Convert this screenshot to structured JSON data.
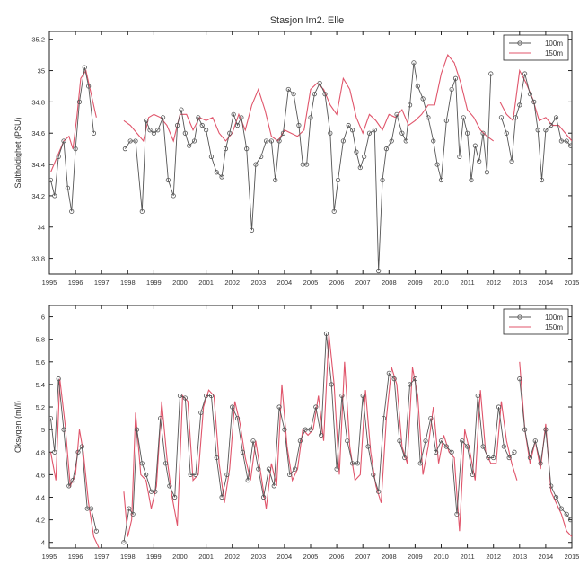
{
  "figure_title": "Stasjon Im2. Elle",
  "colors": {
    "series_100m": "#555555",
    "series_150m": "#e0556b",
    "axis": "#222222"
  },
  "chart_data": [
    {
      "type": "line",
      "title": "Stasjon Im2. Elle",
      "xlabel": "",
      "ylabel": "Saltholdighet (PSU)",
      "xlim": [
        1995,
        2015
      ],
      "ylim": [
        33.7,
        35.25
      ],
      "x_ticks": [
        "1995",
        "1996",
        "1997",
        "1998",
        "1999",
        "2000",
        "2001",
        "2002",
        "2003",
        "2004",
        "2005",
        "2006",
        "2007",
        "2008",
        "2009",
        "2010",
        "2011",
        "2012",
        "2013",
        "2014",
        "2015"
      ],
      "y_ticks": [
        "33.8",
        "34",
        "34.2",
        "34.4",
        "34.6",
        "34.8",
        "35",
        "35.2"
      ],
      "legend_position": "top-right",
      "series": [
        {
          "name": "100m",
          "marker": "circle",
          "x": [
            1995.05,
            1995.2,
            1995.35,
            1995.55,
            1995.7,
            1995.85,
            1996.0,
            1996.15,
            1996.35,
            1996.5,
            1996.7,
            null,
            1997.9,
            1998.1,
            1998.3,
            1998.55,
            1998.7,
            1998.85,
            1999.0,
            1999.15,
            1999.35,
            1999.55,
            1999.75,
            1999.9,
            2000.05,
            2000.2,
            2000.35,
            2000.55,
            2000.7,
            2000.85,
            2001.0,
            2001.2,
            2001.4,
            2001.6,
            2001.75,
            2001.9,
            2002.05,
            2002.2,
            2002.35,
            2002.55,
            2002.75,
            2002.9,
            2003.1,
            2003.3,
            2003.5,
            2003.65,
            2003.8,
            2003.95,
            2004.15,
            2004.35,
            2004.55,
            2004.7,
            2004.85,
            2005.0,
            2005.15,
            2005.35,
            2005.55,
            2005.75,
            2005.9,
            2006.05,
            2006.25,
            2006.45,
            2006.6,
            2006.75,
            2006.9,
            2007.05,
            2007.25,
            2007.45,
            2007.6,
            2007.75,
            2007.9,
            2008.1,
            2008.3,
            2008.5,
            2008.65,
            2008.8,
            2008.95,
            2009.1,
            2009.3,
            2009.5,
            2009.7,
            2009.85,
            2010.0,
            2010.2,
            2010.4,
            2010.55,
            2010.7,
            2010.85,
            2011.0,
            2011.15,
            2011.3,
            2011.45,
            2011.6,
            2011.75,
            2011.9,
            null,
            2012.3,
            2012.5,
            2012.7,
            2012.85,
            2013.0,
            2013.2,
            2013.4,
            2013.55,
            2013.7,
            2013.85,
            2014.0,
            2014.2,
            2014.4,
            2014.6,
            2014.8,
            2014.95
          ],
          "y": [
            34.3,
            34.2,
            34.45,
            34.55,
            34.25,
            34.1,
            34.5,
            34.8,
            35.02,
            34.9,
            34.6,
            null,
            34.5,
            34.55,
            34.55,
            34.1,
            34.68,
            34.62,
            34.6,
            34.62,
            34.7,
            34.3,
            34.2,
            34.65,
            34.75,
            34.6,
            34.52,
            34.55,
            34.7,
            34.65,
            34.62,
            34.45,
            34.35,
            34.32,
            34.5,
            34.6,
            34.72,
            34.65,
            34.7,
            34.5,
            33.98,
            34.4,
            34.45,
            34.55,
            34.55,
            34.3,
            34.55,
            34.6,
            34.88,
            34.85,
            34.65,
            34.4,
            34.4,
            34.7,
            34.85,
            34.92,
            34.85,
            34.6,
            34.1,
            34.3,
            34.55,
            34.65,
            34.62,
            34.48,
            34.38,
            34.45,
            34.6,
            34.62,
            33.72,
            34.3,
            34.5,
            34.55,
            34.72,
            34.6,
            34.55,
            34.78,
            35.05,
            34.9,
            34.82,
            34.7,
            34.55,
            34.4,
            34.3,
            34.68,
            34.88,
            34.95,
            34.45,
            34.7,
            34.6,
            34.3,
            34.52,
            34.42,
            34.6,
            34.35,
            34.98,
            null,
            34.7,
            34.6,
            34.42,
            34.7,
            34.78,
            34.98,
            34.85,
            34.8,
            34.62,
            34.3,
            34.62,
            34.65,
            34.7,
            34.55,
            34.55,
            34.52
          ],
          "values_note": ""
        },
        {
          "name": "150m",
          "marker": "none",
          "x": [
            1995.05,
            1995.3,
            1995.55,
            1995.75,
            1995.9,
            1996.05,
            1996.2,
            1996.4,
            1996.6,
            1996.8,
            null,
            1997.85,
            1998.1,
            1998.35,
            1998.6,
            1998.8,
            1999.0,
            1999.25,
            1999.5,
            1999.75,
            2000.0,
            2000.25,
            2000.5,
            2000.75,
            2001.0,
            2001.25,
            2001.5,
            2001.75,
            2002.0,
            2002.25,
            2002.5,
            2002.75,
            2003.0,
            2003.25,
            2003.5,
            2003.75,
            2004.0,
            2004.25,
            2004.5,
            2004.75,
            2005.0,
            2005.25,
            2005.5,
            2005.75,
            2006.0,
            2006.25,
            2006.5,
            2006.75,
            2007.0,
            2007.25,
            2007.5,
            2007.75,
            2008.0,
            2008.25,
            2008.5,
            2008.75,
            2009.0,
            2009.25,
            2009.5,
            2009.75,
            2010.0,
            2010.25,
            2010.5,
            2010.75,
            2011.0,
            2011.25,
            2011.5,
            2011.75,
            2012.0,
            null,
            2012.25,
            2012.5,
            2012.75,
            2013.0,
            2013.25,
            2013.5,
            2013.75,
            2014.0,
            2014.25,
            2014.5,
            2014.75,
            2015.0
          ],
          "y": [
            34.35,
            34.45,
            34.55,
            34.58,
            34.5,
            34.7,
            34.95,
            35.0,
            34.85,
            34.7,
            null,
            34.68,
            34.65,
            34.6,
            34.55,
            34.7,
            34.72,
            34.7,
            34.65,
            34.55,
            34.72,
            34.72,
            34.62,
            34.7,
            34.68,
            34.7,
            34.6,
            34.55,
            34.6,
            34.72,
            34.62,
            34.78,
            34.88,
            34.75,
            34.58,
            34.55,
            34.62,
            34.6,
            34.58,
            34.62,
            34.88,
            34.92,
            34.88,
            34.78,
            34.72,
            34.95,
            34.88,
            34.7,
            34.6,
            34.72,
            34.68,
            34.62,
            34.72,
            34.7,
            34.75,
            34.65,
            34.68,
            34.72,
            34.78,
            34.78,
            34.98,
            35.1,
            35.05,
            34.92,
            34.75,
            34.7,
            34.62,
            34.58,
            34.55,
            null,
            34.8,
            34.72,
            34.68,
            35.0,
            34.92,
            34.82,
            34.68,
            34.7,
            34.65,
            34.65,
            34.6,
            34.55
          ],
          "values_note": ""
        }
      ]
    },
    {
      "type": "line",
      "title": "",
      "xlabel": "",
      "ylabel": "Oksygen (ml/l)",
      "xlim": [
        1995,
        2015
      ],
      "ylim": [
        3.95,
        6.1
      ],
      "x_ticks": [
        "1995",
        "1996",
        "1997",
        "1998",
        "1999",
        "2000",
        "2001",
        "2002",
        "2003",
        "2004",
        "2005",
        "2006",
        "2007",
        "2008",
        "2009",
        "2010",
        "2011",
        "2012",
        "2013",
        "2014",
        "2015"
      ],
      "y_ticks": [
        "4",
        "4.2",
        "4.4",
        "4.6",
        "4.8",
        "5",
        "5.2",
        "5.4",
        "5.6",
        "5.8",
        "6"
      ],
      "legend_position": "top-right",
      "series": [
        {
          "name": "100m",
          "marker": "circle",
          "x": [
            1995.05,
            1995.2,
            1995.35,
            1995.55,
            1995.75,
            1995.9,
            1996.1,
            1996.25,
            1996.45,
            1996.6,
            1996.8,
            null,
            1997.85,
            1998.05,
            1998.2,
            1998.35,
            1998.55,
            1998.7,
            1998.9,
            1999.05,
            1999.25,
            1999.45,
            1999.6,
            1999.8,
            2000.0,
            2000.2,
            2000.4,
            2000.6,
            2000.8,
            2001.0,
            2001.2,
            2001.4,
            2001.6,
            2001.8,
            2002.0,
            2002.2,
            2002.4,
            2002.6,
            2002.8,
            2003.0,
            2003.2,
            2003.4,
            2003.6,
            2003.8,
            2004.0,
            2004.2,
            2004.4,
            2004.6,
            2004.8,
            2005.0,
            2005.2,
            2005.4,
            2005.6,
            2005.8,
            2006.0,
            2006.2,
            2006.4,
            2006.6,
            2006.8,
            2007.0,
            2007.2,
            2007.4,
            2007.6,
            2007.8,
            2008.0,
            2008.2,
            2008.4,
            2008.6,
            2008.8,
            2009.0,
            2009.2,
            2009.4,
            2009.6,
            2009.8,
            2010.0,
            2010.2,
            2010.4,
            2010.6,
            2010.8,
            2011.0,
            2011.2,
            2011.4,
            2011.6,
            2011.8,
            2012.0,
            2012.2,
            2012.4,
            2012.6,
            2012.8,
            null,
            2013.0,
            2013.2,
            2013.4,
            2013.6,
            2013.8,
            2014.0,
            2014.2,
            2014.4,
            2014.6,
            2014.8,
            2014.95
          ],
          "y": [
            5.1,
            4.8,
            5.45,
            5.0,
            4.5,
            4.55,
            4.8,
            4.85,
            4.3,
            4.3,
            4.1,
            null,
            4.0,
            4.3,
            4.25,
            5.0,
            4.7,
            4.6,
            4.45,
            4.45,
            5.1,
            4.7,
            4.5,
            4.4,
            5.3,
            5.28,
            4.6,
            4.6,
            5.15,
            5.3,
            5.3,
            4.75,
            4.4,
            4.6,
            5.2,
            5.1,
            4.8,
            4.55,
            4.9,
            4.65,
            4.4,
            4.65,
            4.5,
            5.2,
            5.0,
            4.6,
            4.65,
            4.9,
            5.0,
            5.0,
            5.2,
            4.95,
            5.85,
            5.4,
            4.65,
            5.3,
            4.9,
            4.7,
            4.7,
            5.3,
            4.85,
            4.6,
            4.45,
            5.1,
            5.5,
            5.45,
            4.9,
            4.75,
            5.4,
            5.45,
            4.7,
            4.9,
            5.1,
            4.8,
            4.9,
            4.85,
            4.8,
            4.25,
            4.9,
            4.85,
            4.6,
            5.3,
            4.85,
            4.75,
            4.75,
            5.2,
            4.85,
            4.75,
            4.8,
            null,
            5.45,
            5.0,
            4.75,
            4.9,
            4.7,
            5.0,
            4.5,
            4.4,
            4.3,
            4.25,
            4.2
          ],
          "values_note": ""
        },
        {
          "name": "150m",
          "marker": "none",
          "x": [
            1995.05,
            1995.25,
            1995.4,
            1995.6,
            1995.8,
            1996.0,
            1996.15,
            1996.3,
            1996.5,
            1996.7,
            1996.9,
            null,
            1997.85,
            1998.0,
            1998.15,
            1998.3,
            1998.5,
            1998.7,
            1998.9,
            1999.1,
            1999.3,
            1999.5,
            1999.7,
            1999.9,
            2000.1,
            2000.3,
            2000.5,
            2000.7,
            2000.9,
            2001.1,
            2001.3,
            2001.5,
            2001.7,
            2001.9,
            2002.1,
            2002.3,
            2002.5,
            2002.7,
            2002.9,
            2003.1,
            2003.3,
            2003.5,
            2003.7,
            2003.9,
            2004.1,
            2004.3,
            2004.5,
            2004.7,
            2004.9,
            2005.1,
            2005.3,
            2005.5,
            2005.7,
            2005.9,
            2006.1,
            2006.3,
            2006.5,
            2006.7,
            2006.9,
            2007.1,
            2007.3,
            2007.5,
            2007.7,
            2007.9,
            2008.1,
            2008.3,
            2008.5,
            2008.7,
            2008.9,
            2009.1,
            2009.3,
            2009.5,
            2009.7,
            2009.9,
            2010.1,
            2010.3,
            2010.5,
            2010.7,
            2010.9,
            2011.1,
            2011.3,
            2011.5,
            2011.7,
            2011.9,
            2012.1,
            2012.3,
            2012.5,
            2012.7,
            2012.9,
            null,
            2013.0,
            2013.2,
            2013.4,
            2013.6,
            2013.8,
            2014.0,
            2014.2,
            2014.4,
            2014.6,
            2014.8,
            2015.0
          ],
          "y": [
            4.8,
            4.55,
            5.45,
            5.05,
            4.5,
            4.6,
            5.0,
            4.8,
            4.35,
            4.05,
            3.95,
            null,
            4.45,
            4.05,
            4.2,
            5.15,
            4.6,
            4.55,
            4.3,
            4.5,
            5.25,
            4.75,
            4.4,
            4.15,
            5.3,
            5.25,
            4.55,
            4.6,
            5.2,
            5.35,
            5.3,
            4.7,
            4.35,
            4.65,
            5.25,
            5.05,
            4.75,
            4.55,
            4.9,
            4.6,
            4.3,
            4.7,
            4.5,
            5.4,
            4.85,
            4.55,
            4.65,
            5.0,
            4.95,
            5.0,
            5.3,
            4.9,
            5.85,
            5.4,
            4.6,
            5.6,
            4.85,
            4.55,
            4.6,
            5.35,
            4.8,
            4.5,
            4.35,
            5.1,
            5.55,
            5.4,
            4.85,
            4.7,
            5.55,
            5.3,
            4.6,
            4.85,
            5.2,
            4.7,
            4.95,
            4.8,
            4.75,
            4.1,
            5.0,
            4.8,
            4.55,
            5.35,
            4.8,
            4.7,
            4.7,
            5.25,
            4.9,
            4.7,
            4.55,
            null,
            5.6,
            5.0,
            4.7,
            4.9,
            4.65,
            5.05,
            4.45,
            4.35,
            4.25,
            4.1,
            4.05
          ],
          "values_note": ""
        }
      ]
    }
  ]
}
